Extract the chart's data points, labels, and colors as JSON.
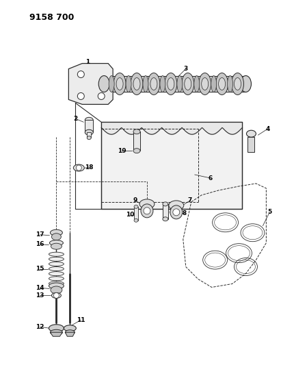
{
  "title": "9158 700",
  "bg_color": "#ffffff",
  "line_color": "#2a2a2a",
  "label_color": "#000000",
  "fig_width": 4.11,
  "fig_height": 5.33,
  "dpi": 100
}
